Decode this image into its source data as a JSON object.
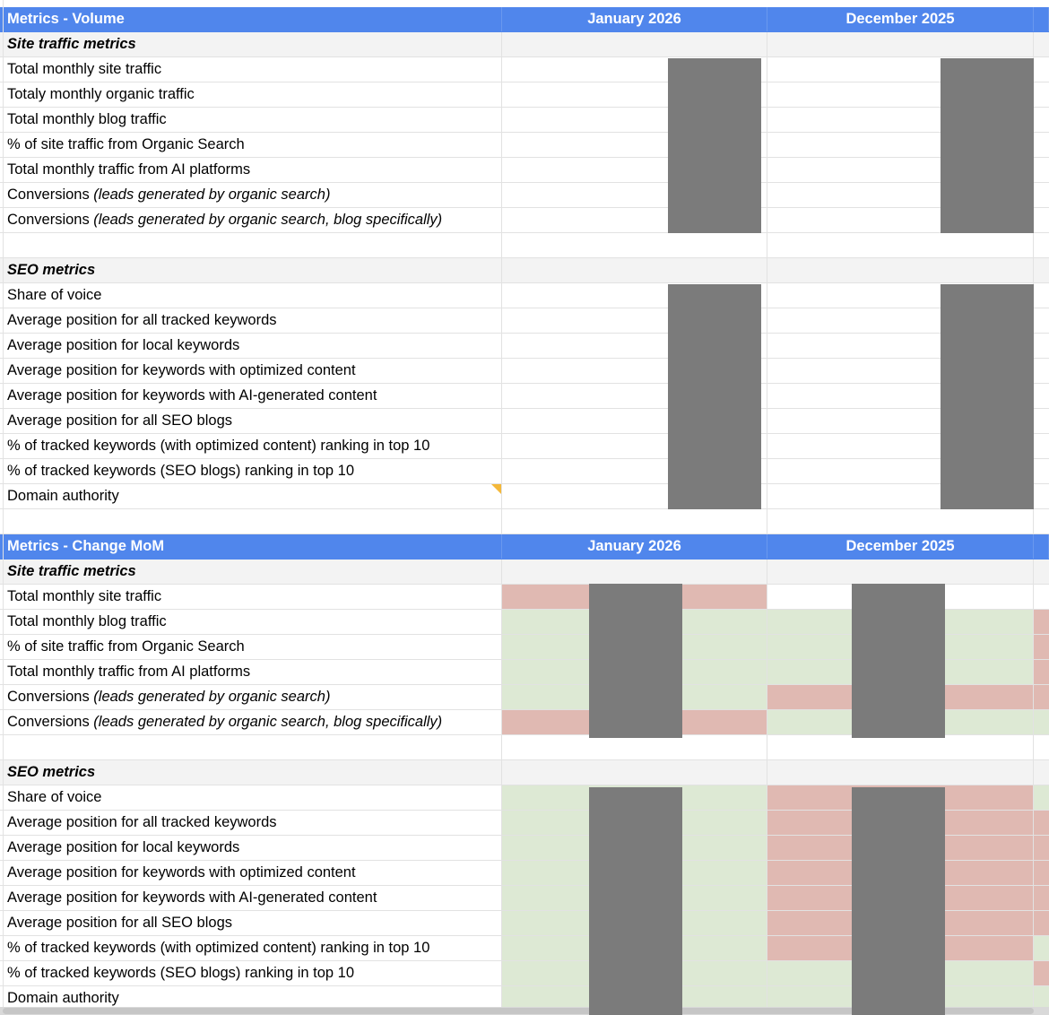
{
  "volume": {
    "header": {
      "title": "Metrics - Volume",
      "col1": "January 2026",
      "col2": "December 2025"
    },
    "site_section": "Site traffic metrics",
    "site_rows": [
      {
        "label": "Total monthly site traffic",
        "note": ""
      },
      {
        "label": "Totaly monthly organic traffic",
        "note": ""
      },
      {
        "label": "Total monthly blog traffic",
        "note": ""
      },
      {
        "label": "% of site traffic from Organic Search",
        "note": ""
      },
      {
        "label": "Total monthly traffic from AI platforms",
        "note": ""
      },
      {
        "label": "Conversions ",
        "note": "(leads generated by organic search)"
      },
      {
        "label": "Conversions ",
        "note": "(leads generated by organic search, blog specifically)"
      }
    ],
    "seo_section": "SEO metrics",
    "seo_rows": [
      "Share of voice",
      "Average position for all tracked keywords",
      "Average position for local keywords",
      "Average position for keywords with optimized content",
      "Average position for keywords with AI-generated content",
      "Average position for all SEO blogs",
      "% of tracked keywords (with optimized content) ranking in top 10",
      "% of tracked keywords (SEO blogs) ranking in top 10",
      "Domain authority"
    ]
  },
  "change": {
    "header": {
      "title": "Metrics - Change MoM",
      "col1": "January 2026",
      "col2": "December 2025"
    },
    "site_section": "Site traffic metrics",
    "site_rows": [
      {
        "label": "Total monthly site traffic",
        "note": "",
        "jan": "red",
        "dec": "none",
        "extra": "none"
      },
      {
        "label": "Total monthly blog traffic",
        "note": "",
        "jan": "green",
        "dec": "green",
        "extra": "red"
      },
      {
        "label": "% of site traffic from Organic Search",
        "note": "",
        "jan": "green",
        "dec": "green",
        "extra": "red"
      },
      {
        "label": "Total monthly traffic from AI platforms",
        "note": "",
        "jan": "green",
        "dec": "green",
        "extra": "red"
      },
      {
        "label": "Conversions ",
        "note": "(leads generated by organic search)",
        "jan": "green",
        "dec": "red",
        "extra": "red"
      },
      {
        "label": "Conversions ",
        "note": "(leads generated by organic search, blog specifically)",
        "jan": "red",
        "dec": "green",
        "extra": "green"
      }
    ],
    "seo_section": "SEO metrics",
    "seo_rows": [
      {
        "label": "Share of voice",
        "jan": "green",
        "dec": "red",
        "extra": "green"
      },
      {
        "label": "Average position for all tracked keywords",
        "jan": "green",
        "dec": "red",
        "extra": "red"
      },
      {
        "label": "Average position for local keywords",
        "jan": "green",
        "dec": "red",
        "extra": "red"
      },
      {
        "label": "Average position for keywords with optimized content",
        "jan": "green",
        "dec": "red",
        "extra": "red"
      },
      {
        "label": "Average position for keywords with AI-generated content",
        "jan": "green",
        "dec": "red",
        "extra": "red"
      },
      {
        "label": "Average position for all SEO blogs",
        "jan": "green",
        "dec": "red",
        "extra": "red"
      },
      {
        "label": "% of tracked keywords (with optimized content) ranking in top 10",
        "jan": "green",
        "dec": "red",
        "extra": "green"
      },
      {
        "label": "% of tracked keywords (SEO blogs) ranking in top 10",
        "jan": "green",
        "dec": "green",
        "extra": "red"
      },
      {
        "label": "Domain authority",
        "jan": "green",
        "dec": "green",
        "extra": "green"
      }
    ]
  },
  "colors": {
    "header": "#5086ec",
    "section": "#f3f3f3",
    "decrease": "#e0b9b2",
    "increase": "#dde9d4",
    "redacted": "#7b7b7b",
    "note_marker": "#f4b83a"
  }
}
